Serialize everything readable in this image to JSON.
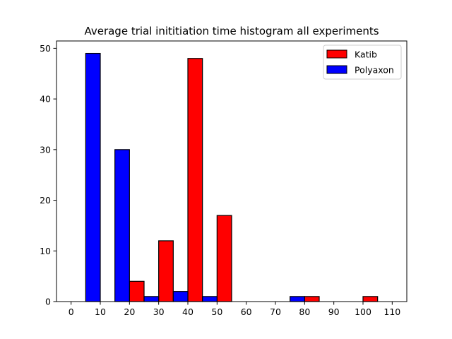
{
  "chart_data": {
    "type": "bar",
    "title": "Average trial inititiation time histogram all experiments",
    "xlabel": "",
    "ylabel": "",
    "xlim": [
      -5,
      115
    ],
    "ylim": [
      0,
      51.45
    ],
    "xticks": [
      0,
      10,
      20,
      30,
      40,
      50,
      60,
      70,
      80,
      90,
      100,
      110
    ],
    "yticks": [
      0,
      10,
      20,
      30,
      40,
      50
    ],
    "bin_edges": [
      0,
      10,
      20,
      30,
      40,
      50,
      60,
      70,
      80,
      90,
      100,
      110
    ],
    "grid": false,
    "legend_position": "top-right",
    "series": [
      {
        "name": "Katib",
        "color": "#ff0000",
        "values": [
          0,
          0,
          4,
          12,
          48,
          17,
          0,
          0,
          1,
          0,
          1
        ]
      },
      {
        "name": "Polyaxon",
        "color": "#0000ff",
        "values": [
          49,
          30,
          1,
          2,
          1,
          0,
          0,
          1,
          0,
          0,
          0
        ]
      }
    ]
  }
}
